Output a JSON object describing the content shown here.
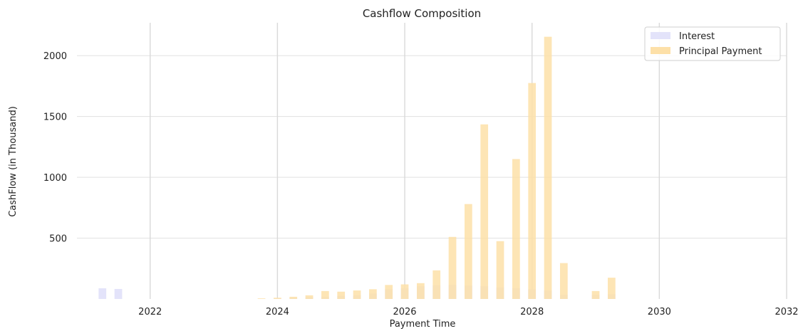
{
  "chart_data": {
    "type": "bar",
    "stacked": false,
    "title": "Cashflow Composition",
    "xlabel": "Payment Time",
    "ylabel": "CashFlow (in Thousand)",
    "xlim": [
      2020.85,
      2032.0
    ],
    "ylim": [
      0,
      2270
    ],
    "xticks": [
      2022,
      2024,
      2026,
      2028,
      2030,
      2032
    ],
    "yticks": [
      500,
      1000,
      1500,
      2000
    ],
    "grid": true,
    "legend_position": "top-right",
    "series": [
      {
        "name": "Interest",
        "color": "#e3e3fa",
        "points": [
          {
            "x": 2021.25,
            "y": 88
          },
          {
            "x": 2021.5,
            "y": 82
          },
          {
            "x": 2023.75,
            "y": 0
          },
          {
            "x": 2024.0,
            "y": 5
          },
          {
            "x": 2024.25,
            "y": 10
          },
          {
            "x": 2024.5,
            "y": 15
          },
          {
            "x": 2024.75,
            "y": 20
          },
          {
            "x": 2025.0,
            "y": 25
          },
          {
            "x": 2025.25,
            "y": 30
          },
          {
            "x": 2025.5,
            "y": 45
          },
          {
            "x": 2025.75,
            "y": 80
          },
          {
            "x": 2026.0,
            "y": 90
          },
          {
            "x": 2026.25,
            "y": 105
          },
          {
            "x": 2026.5,
            "y": 112
          },
          {
            "x": 2026.75,
            "y": 115
          },
          {
            "x": 2027.0,
            "y": 110
          },
          {
            "x": 2027.25,
            "y": 105
          },
          {
            "x": 2027.5,
            "y": 95
          },
          {
            "x": 2027.75,
            "y": 88
          },
          {
            "x": 2028.0,
            "y": 80
          },
          {
            "x": 2028.25,
            "y": 70
          },
          {
            "x": 2028.5,
            "y": 35
          },
          {
            "x": 2029.0,
            "y": 35
          },
          {
            "x": 2029.25,
            "y": 40
          }
        ]
      },
      {
        "name": "Principal Payment",
        "color": "#fde0a8",
        "points": [
          {
            "x": 2023.75,
            "y": 5
          },
          {
            "x": 2024.0,
            "y": 10
          },
          {
            "x": 2024.25,
            "y": 18
          },
          {
            "x": 2024.5,
            "y": 30
          },
          {
            "x": 2024.75,
            "y": 65
          },
          {
            "x": 2025.0,
            "y": 60
          },
          {
            "x": 2025.25,
            "y": 70
          },
          {
            "x": 2025.5,
            "y": 80
          },
          {
            "x": 2025.75,
            "y": 115
          },
          {
            "x": 2026.0,
            "y": 120
          },
          {
            "x": 2026.25,
            "y": 130
          },
          {
            "x": 2026.5,
            "y": 235
          },
          {
            "x": 2026.75,
            "y": 510
          },
          {
            "x": 2027.0,
            "y": 780
          },
          {
            "x": 2027.25,
            "y": 1435
          },
          {
            "x": 2027.5,
            "y": 475
          },
          {
            "x": 2027.75,
            "y": 1150
          },
          {
            "x": 2028.0,
            "y": 1775
          },
          {
            "x": 2028.25,
            "y": 2155
          },
          {
            "x": 2028.5,
            "y": 295
          },
          {
            "x": 2029.0,
            "y": 65
          },
          {
            "x": 2029.25,
            "y": 175
          }
        ]
      }
    ]
  }
}
